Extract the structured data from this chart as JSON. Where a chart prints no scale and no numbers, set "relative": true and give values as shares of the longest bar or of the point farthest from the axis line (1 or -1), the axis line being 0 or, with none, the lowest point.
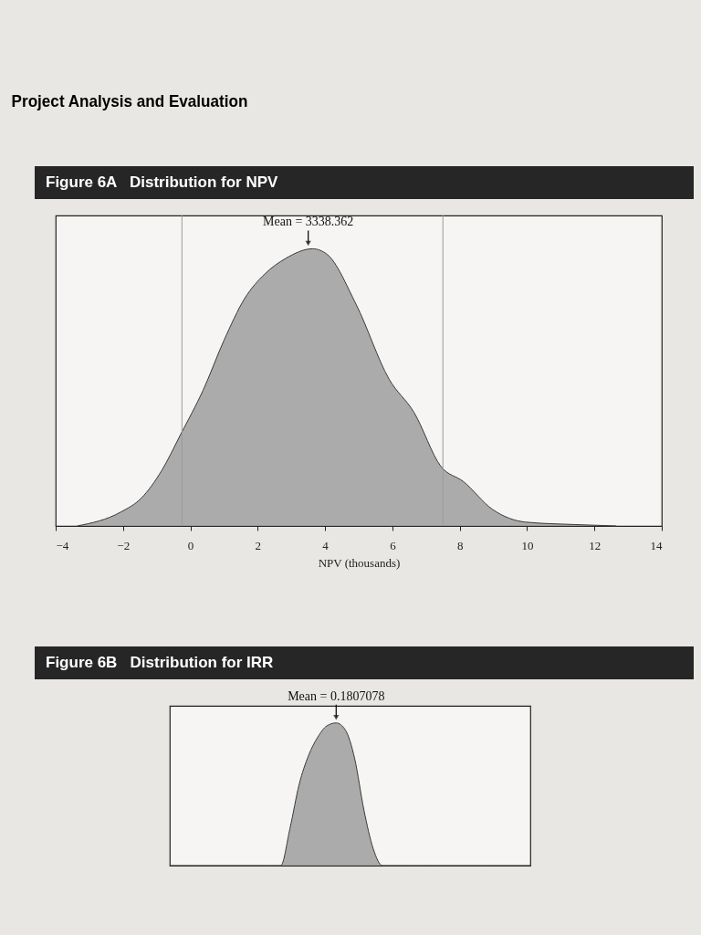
{
  "chart_data": [
    {
      "type": "area",
      "title": "Figure 6A   Distribution for NPV",
      "xlabel": "NPV (thousands)",
      "relative": true,
      "color": "#8c8c8c",
      "annotations": [
        "Project Analysis and Evaluation",
        {
          "text": "Mean = 3338.362",
          "x": 3.5,
          "y": 1
        }
      ],
      "xlim": [
        -4,
        14
      ],
      "xticks": [
        -4,
        -2,
        0,
        2,
        4,
        6,
        8,
        10,
        12,
        14
      ],
      "ref_lines": [
        {
          "axis": "x",
          "value": -0.25
        },
        {
          "axis": "x",
          "value": 7.5
        }
      ],
      "x": [
        -3.36,
        -2.07,
        -1.46,
        -0.85,
        -0.29,
        0.38,
        1.0,
        1.61,
        2.22,
        2.83,
        3.63,
        4.06,
        4.92,
        5.9,
        6.64,
        7.44,
        8.11,
        8.97,
        9.95,
        11.42,
        12.65
      ],
      "values": [
        0,
        0.05,
        0.1,
        0.2,
        0.33,
        0.49,
        0.67,
        0.82,
        0.91,
        0.965,
        1,
        0.98,
        0.8,
        0.53,
        0.41,
        0.215,
        0.16,
        0.06,
        0.014,
        0.005,
        0
      ]
    },
    {
      "type": "area",
      "title": "Figure 6B   Distribution for IRR",
      "relative": true,
      "color": "#8c8c8c",
      "annotations": [
        {
          "text": "Mean = 0.1807078",
          "y": 1
        }
      ],
      "categories": [
        null,
        null,
        null,
        null,
        null,
        null,
        null,
        null,
        null,
        null,
        null,
        null,
        null,
        null,
        null,
        null,
        null,
        null,
        null,
        null,
        null,
        null,
        null,
        null,
        null,
        null,
        null,
        null,
        null,
        null,
        null,
        null,
        null,
        null,
        null,
        null,
        null,
        null,
        null,
        null
      ],
      "values": [
        0,
        0,
        0,
        0,
        0,
        0,
        0,
        0,
        0,
        0,
        0,
        0,
        0,
        0.26,
        0.57,
        0.77,
        0.9,
        0.98,
        1,
        0.95,
        0.75,
        0.39,
        0.12,
        0,
        0,
        0,
        0,
        0,
        0,
        0,
        0,
        0,
        0,
        0,
        0,
        0,
        0,
        0,
        0,
        0
      ]
    }
  ]
}
